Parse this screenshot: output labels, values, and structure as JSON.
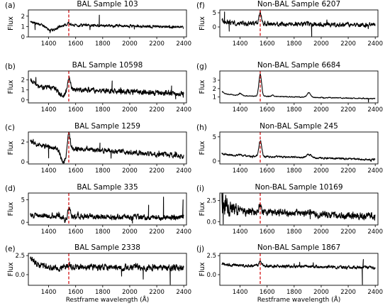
{
  "figure": {
    "line_color": "#000000",
    "marker_color": "#d62728"
  },
  "chart_data": [
    {
      "type": "line",
      "panel_letter": "(a)",
      "title": "BAL Sample 103",
      "ylabel": "Flux",
      "xlabel": "",
      "xlim": [
        1250,
        2420
      ],
      "ylim": [
        0,
        2.6
      ],
      "xticks": [
        1400,
        1600,
        1800,
        2000,
        2200,
        2400
      ],
      "yticks": [
        0,
        1,
        2
      ],
      "vline": 1549,
      "features": {
        "base": 1.2,
        "end": 0.95,
        "noise": 0.1,
        "start_bump": 0.35,
        "absorption": {
          "center": 1420,
          "width": 60,
          "depth": 0.5
        },
        "emission_peak": 0.25,
        "spikes": [
          [
            1775,
            2.1
          ],
          [
            1300,
            0.7
          ]
        ]
      }
    },
    {
      "type": "line",
      "panel_letter": "(b)",
      "title": "BAL Sample 10598",
      "ylabel": "Flux",
      "xlabel": "",
      "xlim": [
        1250,
        2420
      ],
      "ylim": [
        -0.3,
        2.9
      ],
      "xticks": [
        1400,
        1600,
        1800,
        2000,
        2200,
        2400
      ],
      "yticks": [
        0,
        1,
        2
      ],
      "vline": 1549,
      "features": {
        "base": 1.25,
        "end": 0.6,
        "noise": 0.2,
        "start_bump": 0.8,
        "absorption": {
          "center": 1500,
          "width": 40,
          "depth": 0.7
        },
        "emission_peak": 1.4,
        "spikes": [
          [
            1870,
            1.9
          ],
          [
            2340,
            0.1
          ],
          [
            2310,
            1.4
          ]
        ]
      }
    },
    {
      "type": "line",
      "panel_letter": "(c)",
      "title": "BAL Sample 1259",
      "ylabel": "Flux",
      "xlabel": "",
      "xlim": [
        1250,
        2420
      ],
      "ylim": [
        -0.2,
        3.0
      ],
      "xticks": [
        1400,
        1600,
        1800,
        2000,
        2200,
        2400
      ],
      "yticks": [
        0,
        2
      ],
      "vline": 1549,
      "features": {
        "base": 1.6,
        "end": 0.6,
        "noise": 0.18,
        "start_bump": 0.5,
        "absorption": {
          "center": 1510,
          "width": 30,
          "depth": 1.4
        },
        "emission_peak": 1.8,
        "spikes": [
          [
            1780,
            1.9
          ],
          [
            1400,
            0.4
          ]
        ]
      }
    },
    {
      "type": "line",
      "panel_letter": "(d)",
      "title": "BAL Sample 335",
      "ylabel": "Flux",
      "xlabel": "",
      "xlim": [
        1250,
        2420
      ],
      "ylim": [
        -0.6,
        6.5
      ],
      "xticks": [
        1400,
        1600,
        1800,
        2000,
        2200,
        2400
      ],
      "yticks": [
        0,
        5
      ],
      "vline": 1549,
      "features": {
        "base": 1.5,
        "end": 1.0,
        "noise": 0.45,
        "start_bump": 0.0,
        "absorption": {
          "center": 1520,
          "width": 25,
          "depth": 1.2
        },
        "emission_peak": 2.0,
        "spikes": [
          [
            2250,
            5.6
          ],
          [
            2395,
            5.0
          ],
          [
            2140,
            3.8
          ],
          [
            2020,
            -0.2
          ]
        ]
      }
    },
    {
      "type": "line",
      "panel_letter": "(e)",
      "title": "BAL Sample 2338",
      "ylabel": "Flux",
      "xlabel": "Restframe wavelength (Å)",
      "xlim": [
        1250,
        2420
      ],
      "ylim": [
        -1.4,
        2.8
      ],
      "xticks": [
        1400,
        1600,
        1800,
        2000,
        2200,
        2400
      ],
      "yticks": [
        0.0,
        2.5
      ],
      "ytick_labels": [
        "0.0",
        "2.5"
      ],
      "vline": 1549,
      "features": {
        "base": 1.0,
        "end": 0.9,
        "noise": 0.3,
        "start_bump": 1.2,
        "absorption": {
          "center": 1450,
          "width": 40,
          "depth": 0.2
        },
        "emission_peak": 0.4,
        "spikes": [
          [
            2300,
            -1.3
          ],
          [
            2100,
            -0.6
          ],
          [
            1940,
            -0.2
          ]
        ]
      }
    },
    {
      "type": "line",
      "panel_letter": "(f)",
      "title": "Non-BAL Sample 6207",
      "ylabel": "Flux",
      "xlabel": "",
      "xlim": [
        1250,
        2420
      ],
      "ylim": [
        -3.5,
        6.0
      ],
      "xticks": [
        1400,
        1600,
        1800,
        2000,
        2200,
        2400
      ],
      "yticks": [
        0,
        5
      ],
      "vline": 1549,
      "features": {
        "base": 1.3,
        "end": 0.7,
        "noise": 0.6,
        "start_bump": 1.0,
        "absorption": {
          "center": 1400,
          "width": 10,
          "depth": 0.0
        },
        "emission_peak": 3.5,
        "spikes": [
          [
            1930,
            -3.3
          ],
          [
            1285,
            5.3
          ],
          [
            1320,
            -1.5
          ],
          [
            2330,
            0.2
          ]
        ]
      }
    },
    {
      "type": "line",
      "panel_letter": "(g)",
      "title": "Non-BAL Sample 6684",
      "ylabel": "Flux",
      "xlabel": "",
      "xlim": [
        1250,
        2420
      ],
      "ylim": [
        0.3,
        4.1
      ],
      "xticks": [
        1400,
        1600,
        1800,
        2000,
        2200,
        2400
      ],
      "yticks": [
        1,
        2,
        3
      ],
      "vline": 1549,
      "features": {
        "base": 1.2,
        "end": 0.8,
        "noise": 0.04,
        "start_bump": 0.4,
        "absorption": {
          "center": 1400,
          "width": 10,
          "depth": 0.0
        },
        "emission_peak": 2.6,
        "bumps": [
          [
            1400,
            0.25,
            15
          ],
          [
            1909,
            0.55,
            18
          ],
          [
            1640,
            0.15,
            12
          ]
        ],
        "spikes": [
          [
            2350,
            0.4
          ]
        ]
      }
    },
    {
      "type": "line",
      "panel_letter": "(h)",
      "title": "Non-BAL Sample 245",
      "ylabel": "Flux",
      "xlabel": "",
      "xlim": [
        1250,
        2420
      ],
      "ylim": [
        -0.6,
        6.0
      ],
      "xticks": [
        1400,
        1600,
        1800,
        2000,
        2200,
        2400
      ],
      "yticks": [
        0,
        5
      ],
      "vline": 1549,
      "features": {
        "base": 1.2,
        "end": 0.3,
        "noise": 0.15,
        "start_bump": 0.4,
        "absorption": {
          "center": 1400,
          "width": 10,
          "depth": 0.0
        },
        "emission_peak": 3.3,
        "bumps": [
          [
            1909,
            0.6,
            25
          ],
          [
            1400,
            0.3,
            15
          ]
        ],
        "spikes": []
      }
    },
    {
      "type": "line",
      "panel_letter": "(i)",
      "title": "Non-BAL Sample 10169",
      "ylabel": "Flux",
      "xlabel": "",
      "xlim": [
        1250,
        2420
      ],
      "ylim": [
        -0.4,
        3.4
      ],
      "xticks": [
        1400,
        1600,
        1800,
        2000,
        2200,
        2400
      ],
      "yticks": [
        0.0,
        2.5
      ],
      "ytick_labels": [
        "0.0",
        "2.5"
      ],
      "vline": 1549,
      "features": {
        "base": 1.35,
        "end": 0.6,
        "noise": 0.3,
        "start_bump": 0.9,
        "start_noise": 1.2,
        "absorption": {
          "center": 1400,
          "width": 10,
          "depth": 0.0
        },
        "emission_peak": 0.8,
        "bumps": [
          [
            1909,
            0.3,
            20
          ]
        ],
        "spikes": [
          [
            1265,
            3.1
          ],
          [
            1275,
            -0.3
          ]
        ]
      }
    },
    {
      "type": "line",
      "panel_letter": "(j)",
      "title": "Non-BAL Sample 1867",
      "ylabel": "Flux",
      "xlabel": "Restframe wavelength (Å)",
      "xlim": [
        1250,
        2420
      ],
      "ylim": [
        -1.4,
        2.8
      ],
      "xticks": [
        1400,
        1600,
        1800,
        2000,
        2200,
        2400
      ],
      "yticks": [
        0.0,
        2.5
      ],
      "ytick_labels": [
        "0.0",
        "2.5"
      ],
      "vline": 1549,
      "features": {
        "base": 1.25,
        "end": 0.9,
        "noise": 0.15,
        "start_bump": 0.2,
        "absorption": {
          "center": 1400,
          "width": 10,
          "depth": 0.0
        },
        "emission_peak": 0.6,
        "spikes": [
          [
            2305,
            -1.3
          ],
          [
            2312,
            2.0
          ]
        ]
      }
    }
  ]
}
